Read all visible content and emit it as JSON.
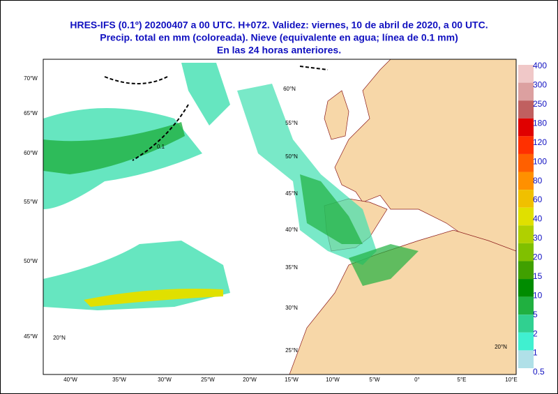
{
  "header": {
    "lines": [
      "HRES-IFS (0.1º) 20200407 a 00 UTC.  H+072. Validez: viernes, 10 de abril de 2020,  a  00 UTC.",
      "Precip. total en mm (coloreada). Nieve (equivalente en agua; línea de 0.1 mm)",
      "En las 24 horas anteriores."
    ]
  },
  "map": {
    "bottom_labels": [
      "40°W",
      "35°W",
      "30°W",
      "25°W",
      "20°W",
      "15°W",
      "10°W",
      "5°W",
      "0°",
      "5°E",
      "10°E"
    ],
    "left_labels": [
      "70°W",
      "65°W",
      "60°W",
      "55°W",
      "50°W",
      "45°W"
    ],
    "lat_labels": [
      "60°N",
      "55°N",
      "50°N",
      "45°N",
      "40°N",
      "35°N",
      "30°N",
      "25°N"
    ],
    "corner_labels": [
      "20°N",
      "20°N"
    ],
    "contour_label": "0.1"
  },
  "legend": {
    "entries": [
      {
        "label": "400",
        "color": "#f0c8c8"
      },
      {
        "label": "300",
        "color": "#dca0a0"
      },
      {
        "label": "250",
        "color": "#c06060"
      },
      {
        "label": "180",
        "color": "#e00000"
      },
      {
        "label": "120",
        "color": "#ff3000"
      },
      {
        "label": "100",
        "color": "#ff6000"
      },
      {
        "label": "80",
        "color": "#ff9000"
      },
      {
        "label": "60",
        "color": "#f0c000"
      },
      {
        "label": "40",
        "color": "#e0e000"
      },
      {
        "label": "30",
        "color": "#b0d000"
      },
      {
        "label": "20",
        "color": "#80c000"
      },
      {
        "label": "15",
        "color": "#40a000"
      },
      {
        "label": "10",
        "color": "#008c00"
      },
      {
        "label": "5",
        "color": "#20b040"
      },
      {
        "label": "2",
        "color": "#30d090"
      },
      {
        "label": "1",
        "color": "#40f0d0"
      },
      {
        "label": "0.5",
        "color": "#b0e0e8"
      }
    ]
  }
}
